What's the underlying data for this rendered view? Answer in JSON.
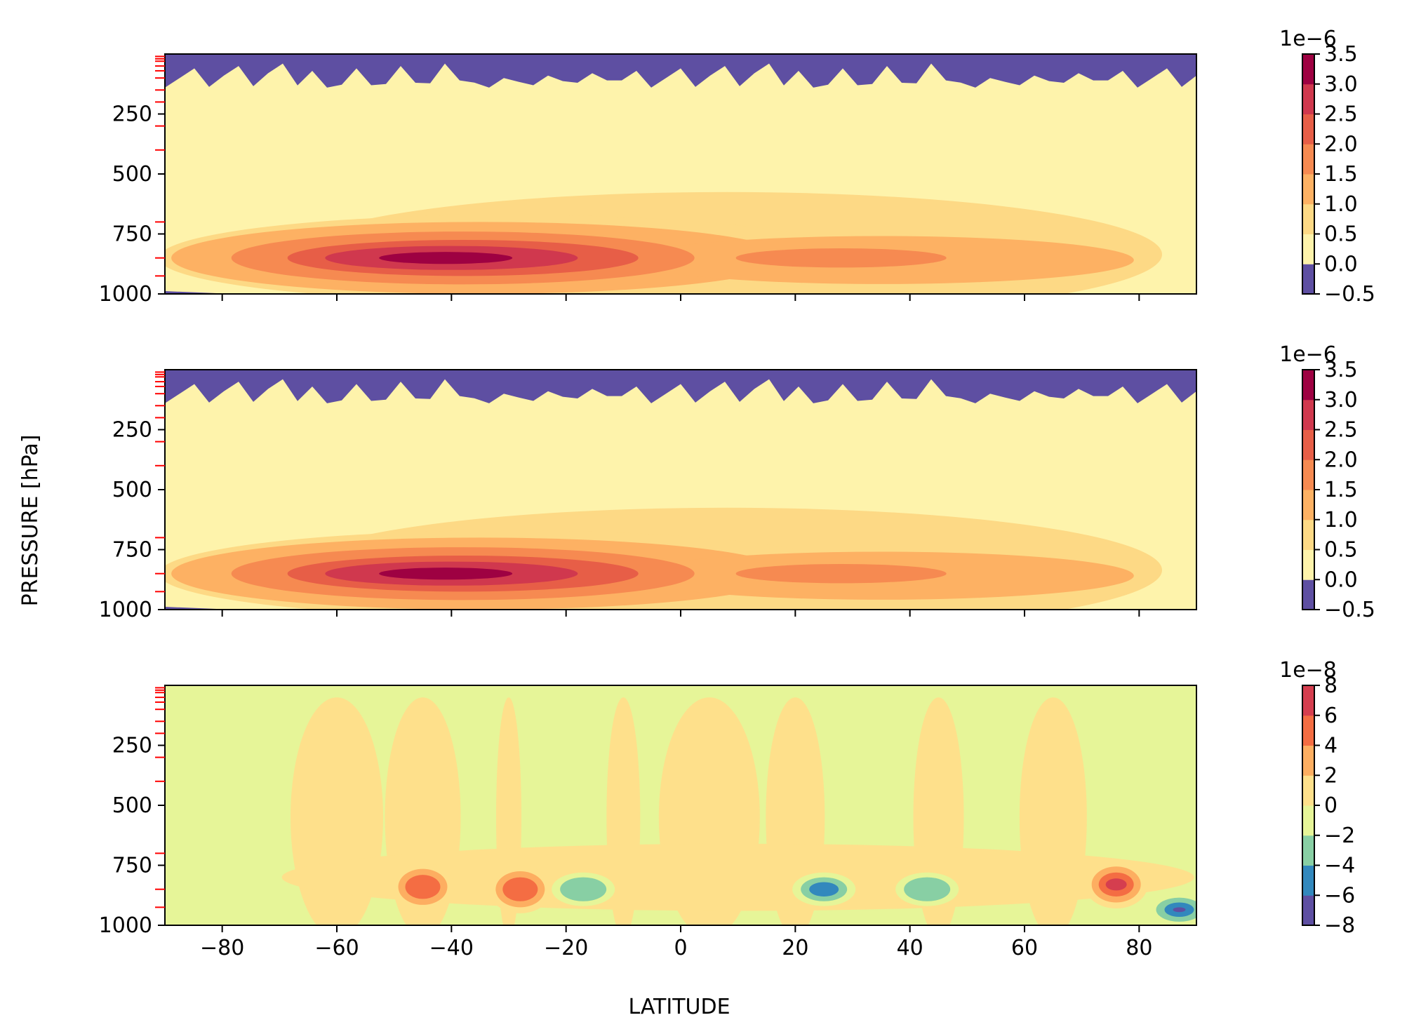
{
  "figure": {
    "ylabel": "PRESSURE [hPa]",
    "xlabel": "LATITUDE"
  },
  "chart_data": [
    {
      "type": "heatmap",
      "title": "",
      "xlabel": "",
      "ylabel": "PRESSURE [hPa]",
      "xlim": [
        -90,
        90
      ],
      "ylim": [
        1000,
        0
      ],
      "y_ticks": [
        250,
        500,
        750,
        1000
      ],
      "x_ticks": [
        -80,
        -60,
        -40,
        -20,
        0,
        20,
        40,
        60,
        80
      ],
      "x_tick_labels_shown": false,
      "level_tick_marks": [
        10,
        20,
        30,
        50,
        70,
        100,
        150,
        200,
        300,
        400,
        700,
        850,
        925
      ],
      "colorbar": {
        "multiplier": "1e−6",
        "levels": [
          -0.5,
          0.0,
          0.5,
          1.0,
          1.5,
          2.0,
          2.5,
          3.0,
          3.5
        ],
        "tick_labels": [
          "−0.5",
          "0.0",
          "0.5",
          "1.0",
          "1.5",
          "2.0",
          "2.5",
          "3.0",
          "3.5"
        ],
        "colors": [
          "#5e4fa2",
          "#fef3ab",
          "#fdd985",
          "#fdb163",
          "#f68a51",
          "#e75e47",
          "#d0384e",
          "#9e0142"
        ]
      },
      "features": [
        {
          "type": "core",
          "lat": -42,
          "p": 850,
          "peak": 3.5
        },
        {
          "type": "band",
          "lat_range": [
            -68,
            84
          ],
          "p_range": [
            720,
            960
          ],
          "value": 1.0
        },
        {
          "type": "stratosphere",
          "p_range": [
            0,
            150
          ],
          "value": -0.5
        }
      ]
    },
    {
      "type": "heatmap",
      "title": "",
      "xlabel": "",
      "ylabel": "PRESSURE [hPa]",
      "xlim": [
        -90,
        90
      ],
      "ylim": [
        1000,
        0
      ],
      "y_ticks": [
        250,
        500,
        750,
        1000
      ],
      "x_ticks": [
        -80,
        -60,
        -40,
        -20,
        0,
        20,
        40,
        60,
        80
      ],
      "x_tick_labels_shown": false,
      "level_tick_marks": [
        10,
        20,
        30,
        50,
        70,
        100,
        150,
        200,
        300,
        400,
        700,
        850,
        925
      ],
      "colorbar": {
        "multiplier": "1e−6",
        "levels": [
          -0.5,
          0.0,
          0.5,
          1.0,
          1.5,
          2.0,
          2.5,
          3.0,
          3.5
        ],
        "tick_labels": [
          "−0.5",
          "0.0",
          "0.5",
          "1.0",
          "1.5",
          "2.0",
          "2.5",
          "3.0",
          "3.5"
        ],
        "colors": [
          "#5e4fa2",
          "#fef3ab",
          "#fdd985",
          "#fdb163",
          "#f68a51",
          "#e75e47",
          "#d0384e",
          "#9e0142"
        ]
      },
      "features": [
        {
          "type": "core",
          "lat": -42,
          "p": 850,
          "peak": 3.5
        },
        {
          "type": "band",
          "lat_range": [
            -68,
            84
          ],
          "p_range": [
            720,
            960
          ],
          "value": 1.0
        },
        {
          "type": "stratosphere",
          "p_range": [
            0,
            150
          ],
          "value": -0.5
        }
      ]
    },
    {
      "type": "heatmap",
      "title": "",
      "xlabel": "LATITUDE",
      "ylabel": "PRESSURE [hPa]",
      "xlim": [
        -90,
        90
      ],
      "ylim": [
        1000,
        0
      ],
      "y_ticks": [
        250,
        500,
        750,
        1000
      ],
      "x_ticks": [
        -80,
        -60,
        -40,
        -20,
        0,
        20,
        40,
        60,
        80
      ],
      "x_tick_labels": [
        "−80",
        "−60",
        "−40",
        "−20",
        "0",
        "20",
        "40",
        "60",
        "80"
      ],
      "x_tick_labels_shown": true,
      "level_tick_marks": [
        10,
        20,
        30,
        50,
        70,
        100,
        150,
        200,
        300,
        400,
        700,
        850,
        925
      ],
      "colorbar": {
        "multiplier": "1e−8",
        "levels": [
          -8,
          -6,
          -4,
          -2,
          0,
          2,
          4,
          6,
          8
        ],
        "tick_labels": [
          "−8",
          "−6",
          "−4",
          "−2",
          "0",
          "2",
          "4",
          "6",
          "8"
        ],
        "colors": [
          "#5e4fa2",
          "#3288bd",
          "#88cfa4",
          "#e6f598",
          "#fee08b",
          "#fdae61",
          "#f46d43",
          "#d53e4f"
        ]
      },
      "features": [
        {
          "type": "anomaly",
          "lat": -45,
          "p": 840,
          "value": 4
        },
        {
          "type": "anomaly",
          "lat": -28,
          "p": 850,
          "value": 4
        },
        {
          "type": "anomaly",
          "lat": -17,
          "p": 850,
          "value": -4
        },
        {
          "type": "anomaly",
          "lat": 25,
          "p": 850,
          "value": -6
        },
        {
          "type": "anomaly",
          "lat": 43,
          "p": 850,
          "value": -4
        },
        {
          "type": "anomaly",
          "lat": 76,
          "p": 830,
          "value": 8
        },
        {
          "type": "anomaly",
          "lat": 87,
          "p": 935,
          "value": -8
        }
      ]
    }
  ]
}
